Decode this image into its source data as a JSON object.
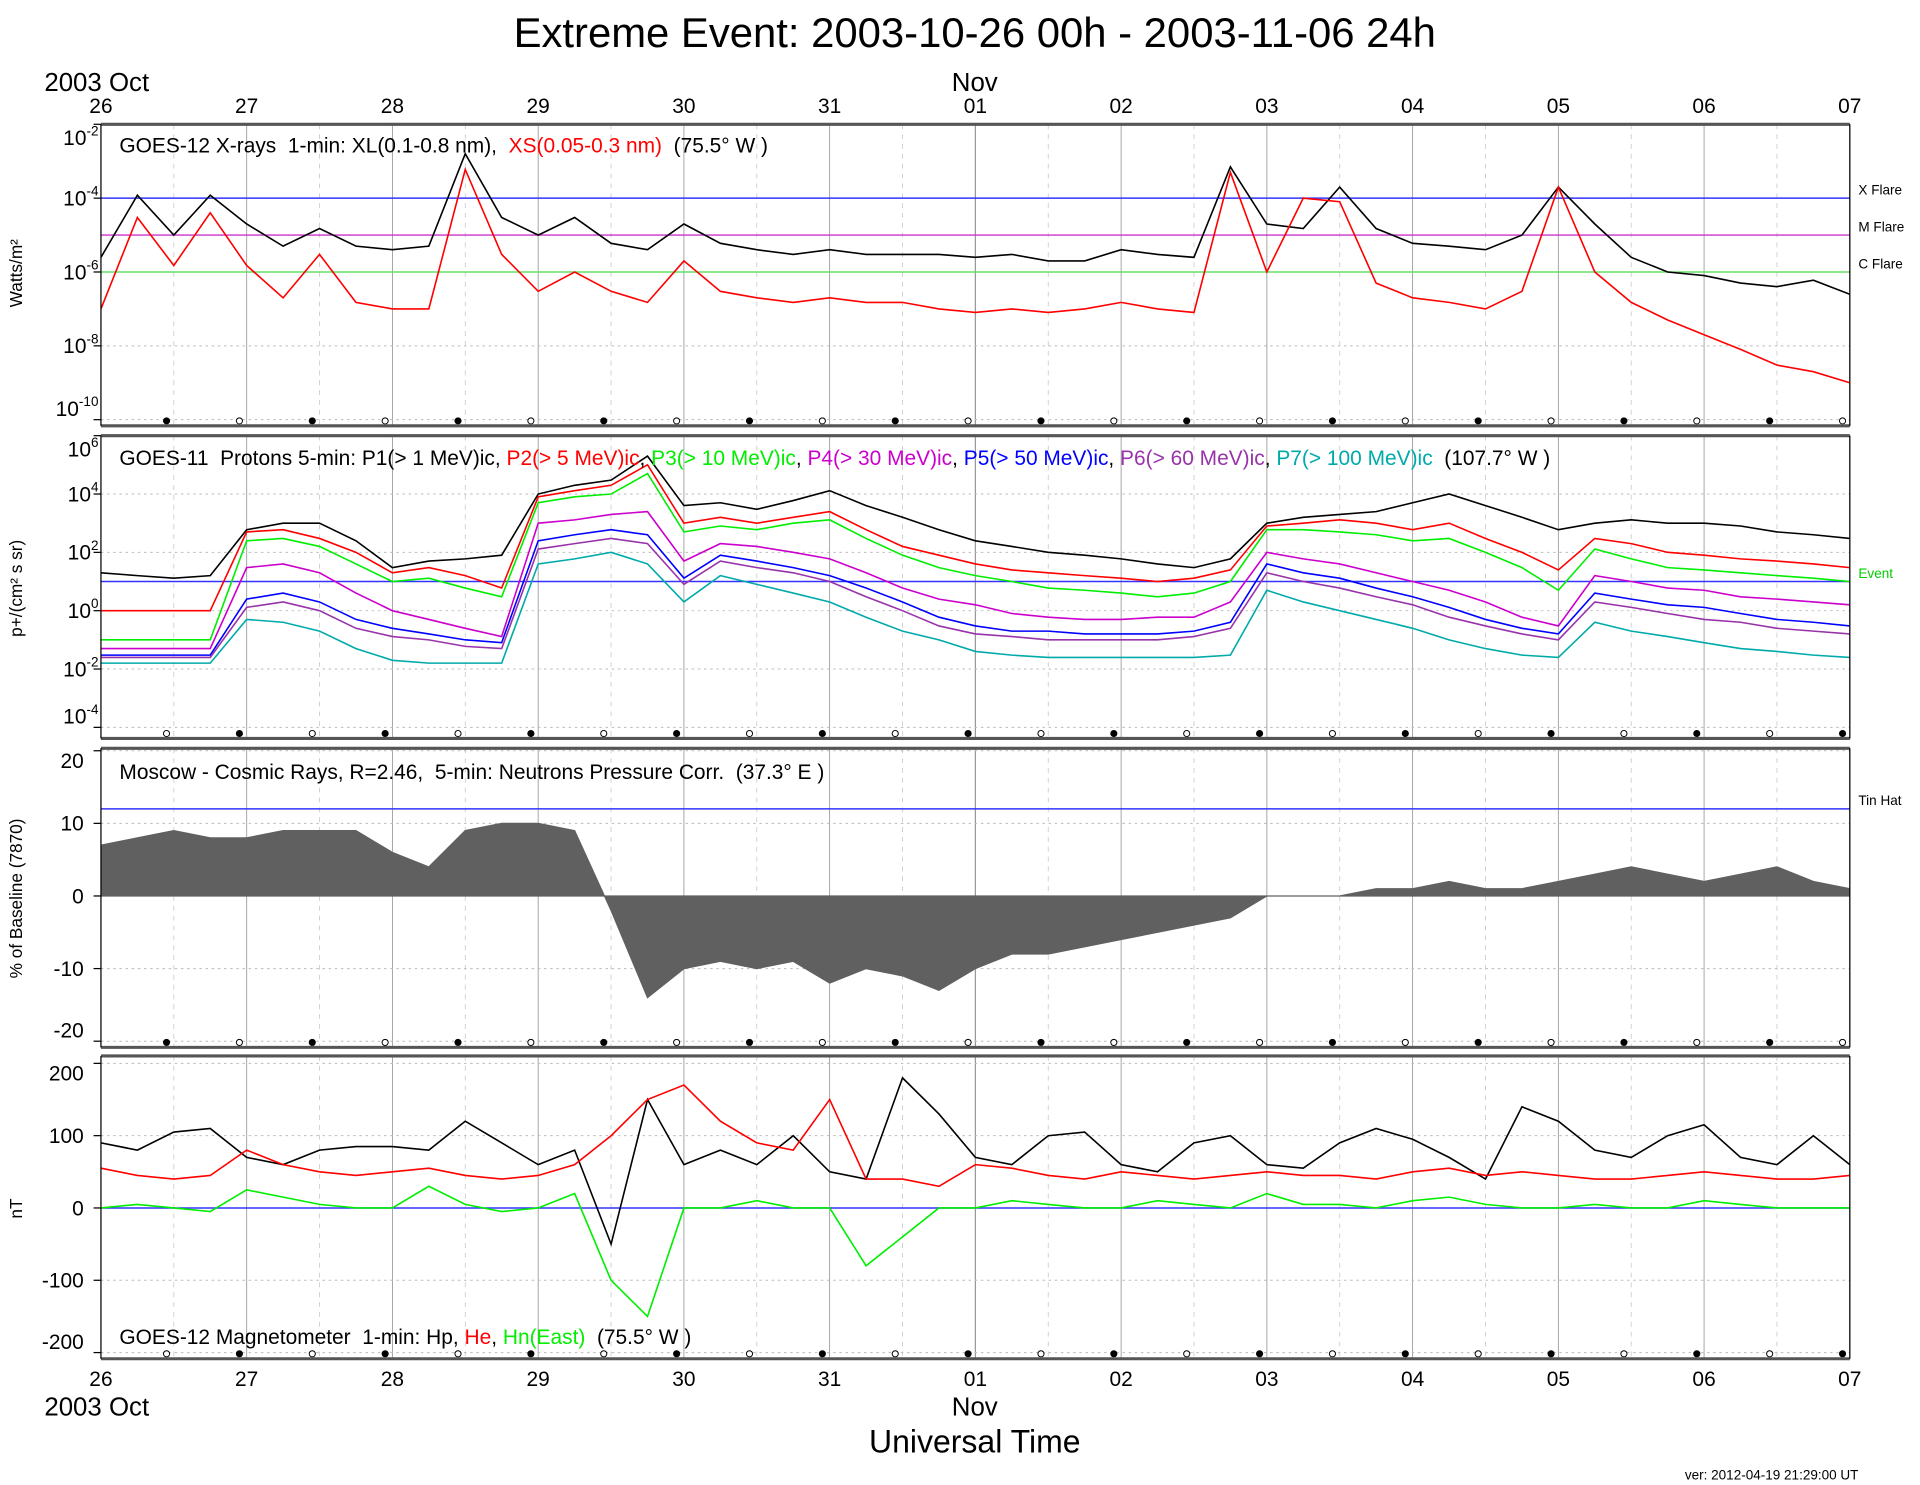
{
  "title": "Extreme Event: 2003-10-26 00h - 2003-11-06 24h",
  "month_left": "2003 Oct",
  "month_mid": "Nov",
  "x_tick_labels": [
    "26",
    "27",
    "28",
    "29",
    "30",
    "31",
    "01",
    "02",
    "03",
    "04",
    "05",
    "06",
    "07"
  ],
  "xlabel": "Universal Time",
  "version": "ver: 2012-04-19 21:29:00 UT",
  "colors": {
    "threshold_blue": "#3333ff",
    "m_flare": "#cc33cc",
    "c_flare": "#66dd66",
    "grid": "#999999",
    "cosmic_fill": "#606060"
  },
  "chart_data": [
    {
      "type": "line",
      "id": "xray",
      "title_parts": [
        {
          "text": "GOES-12 X-rays  1-min: XL(0.1-0.8 nm),  ",
          "color": "#000000"
        },
        {
          "text": "XS(0.05-0.3 nm)",
          "color": "#ff0000"
        },
        {
          "text": "  (75.5° W )",
          "color": "#000000"
        }
      ],
      "ylabel": "Watts/m²",
      "yscale": "log",
      "ylim": [
        1e-10,
        0.01
      ],
      "y_ticks": [
        {
          "base": "10",
          "exp": "-2"
        },
        {
          "base": "10",
          "exp": "-4"
        },
        {
          "base": "10",
          "exp": "-6"
        },
        {
          "base": "10",
          "exp": "-8"
        },
        {
          "base": "10",
          "exp": "-10"
        }
      ],
      "thresholds": [
        {
          "label": "X Flare",
          "value": 0.0001,
          "color": "#3333ff"
        },
        {
          "label": "M Flare",
          "value": 1e-05,
          "color": "#cc33cc"
        },
        {
          "label": "C Flare",
          "value": 1e-06,
          "color": "#66dd66"
        }
      ],
      "series": [
        {
          "name": "XL(0.1-0.8 nm)",
          "color": "#000000",
          "values": [
            2.5e-06,
            0.00012,
            1e-05,
            0.00012,
            2e-05,
            5e-06,
            1.5e-05,
            5e-06,
            4e-06,
            5e-06,
            0.0016,
            3e-05,
            1e-05,
            3e-05,
            6e-06,
            4e-06,
            2e-05,
            6e-06,
            4e-06,
            3e-06,
            4e-06,
            3e-06,
            3e-06,
            3e-06,
            2.5e-06,
            3e-06,
            2e-06,
            2e-06,
            4e-06,
            3e-06,
            2.5e-06,
            0.0007,
            2e-05,
            1.5e-05,
            0.0002,
            1.5e-05,
            6e-06,
            5e-06,
            4e-06,
            1e-05,
            0.0002,
            2e-05,
            2.5e-06,
            1e-06,
            8e-07,
            5e-07,
            4e-07,
            6e-07,
            2.5e-07
          ]
        },
        {
          "name": "XS(0.05-0.3 nm)",
          "color": "#ff0000",
          "values": [
            1e-07,
            3e-05,
            1.5e-06,
            4e-05,
            1.5e-06,
            2e-07,
            3e-06,
            1.5e-07,
            1e-07,
            1e-07,
            0.0006,
            3e-06,
            3e-07,
            1e-06,
            3e-07,
            1.5e-07,
            2e-06,
            3e-07,
            2e-07,
            1.5e-07,
            2e-07,
            1.5e-07,
            1.5e-07,
            1e-07,
            8e-08,
            1e-07,
            8e-08,
            1e-07,
            1.5e-07,
            1e-07,
            8e-08,
            0.0005,
            1e-06,
            0.0001,
            8e-05,
            5e-07,
            2e-07,
            1.5e-07,
            1e-07,
            3e-07,
            0.0002,
            1e-06,
            1.5e-07,
            5e-08,
            2e-08,
            8e-09,
            3e-09,
            2e-09,
            1e-09
          ]
        }
      ]
    },
    {
      "type": "line",
      "id": "protons",
      "title_parts": [
        {
          "text": "GOES-11  Protons 5-min: P1(> 1 MeV)ic, ",
          "color": "#000000"
        },
        {
          "text": "P2(> 5 MeV)ic",
          "color": "#ff0000"
        },
        {
          "text": ", ",
          "color": "#000000"
        },
        {
          "text": "P3(> 10 MeV)ic",
          "color": "#00ee00"
        },
        {
          "text": ", ",
          "color": "#000000"
        },
        {
          "text": "P4(> 30 MeV)ic",
          "color": "#cc00cc"
        },
        {
          "text": ", ",
          "color": "#000000"
        },
        {
          "text": "P5(> 50 MeV)ic",
          "color": "#0000ff"
        },
        {
          "text": ", ",
          "color": "#000000"
        },
        {
          "text": "P6(> 60 MeV)ic",
          "color": "#9933aa"
        },
        {
          "text": ", ",
          "color": "#000000"
        },
        {
          "text": "P7(> 100 MeV)ic",
          "color": "#00aaaa"
        },
        {
          "text": "  (107.7° W )",
          "color": "#000000"
        }
      ],
      "ylabel": "p+/(cm² s sr)",
      "yscale": "log",
      "ylim": [
        0.0001,
        1000000.0
      ],
      "y_ticks": [
        {
          "base": "10",
          "exp": "6"
        },
        {
          "base": "10",
          "exp": "4"
        },
        {
          "base": "10",
          "exp": "2"
        },
        {
          "base": "10",
          "exp": "0"
        },
        {
          "base": "10",
          "exp": "-2"
        },
        {
          "base": "10",
          "exp": "-4"
        }
      ],
      "thresholds": [
        {
          "label": "Event",
          "value": 10,
          "color": "#3333ff",
          "label_color": "#00cc00"
        }
      ],
      "series": [
        {
          "name": "P1(> 1 MeV)ic",
          "color": "#000000",
          "values": [
            20,
            16,
            13,
            16,
            600,
            1000,
            1000,
            250,
            30,
            50,
            60,
            80,
            10000,
            20000,
            30000,
            200000,
            4000,
            5000,
            3000,
            6000,
            13000,
            4000,
            1600,
            600,
            250,
            160,
            100,
            80,
            60,
            40,
            30,
            60,
            1000,
            1600,
            2000,
            2500,
            5000,
            10000,
            4000,
            1600,
            600,
            1000,
            1300,
            1000,
            1000,
            800,
            500,
            400,
            300
          ]
        },
        {
          "name": "P2(> 5 MeV)ic",
          "color": "#ff0000",
          "values": [
            1,
            1,
            1,
            1,
            500,
            600,
            300,
            100,
            20,
            30,
            16,
            6,
            8000,
            13000,
            20000,
            100000,
            1000,
            1600,
            1000,
            1600,
            2500,
            600,
            160,
            80,
            40,
            25,
            20,
            16,
            13,
            10,
            13,
            25,
            800,
            1000,
            1300,
            1000,
            600,
            1000,
            300,
            100,
            25,
            300,
            200,
            100,
            80,
            60,
            50,
            40,
            30
          ]
        },
        {
          "name": "P3(> 10 MeV)ic",
          "color": "#00ee00",
          "values": [
            0.1,
            0.1,
            0.1,
            0.1,
            250,
            300,
            160,
            40,
            10,
            13,
            6,
            3,
            5000,
            8000,
            10000,
            50000,
            500,
            800,
            600,
            1000,
            1300,
            300,
            80,
            30,
            16,
            10,
            6,
            5,
            4,
            3,
            4,
            10,
            600,
            600,
            500,
            400,
            250,
            300,
            100,
            30,
            5,
            130,
            60,
            30,
            25,
            20,
            16,
            13,
            10
          ]
        },
        {
          "name": "P4(> 30 MeV)ic",
          "color": "#cc00cc",
          "values": [
            0.05,
            0.05,
            0.05,
            0.05,
            30,
            40,
            20,
            4,
            1,
            0.5,
            0.25,
            0.13,
            1000,
            1300,
            2000,
            2500,
            50,
            200,
            160,
            100,
            60,
            20,
            6,
            2.5,
            1.6,
            0.8,
            0.6,
            0.5,
            0.5,
            0.6,
            0.6,
            2,
            100,
            60,
            40,
            20,
            10,
            5,
            2,
            0.6,
            0.3,
            16,
            10,
            6,
            5,
            3,
            2.5,
            2,
            1.6
          ]
        },
        {
          "name": "P5(> 50 MeV)ic",
          "color": "#0000ff",
          "values": [
            0.03,
            0.03,
            0.03,
            0.03,
            2.5,
            4,
            2,
            0.5,
            0.25,
            0.16,
            0.1,
            0.08,
            250,
            400,
            600,
            400,
            13,
            80,
            50,
            30,
            16,
            6,
            2,
            0.6,
            0.3,
            0.2,
            0.2,
            0.16,
            0.16,
            0.16,
            0.2,
            0.4,
            40,
            20,
            13,
            6,
            3,
            1.3,
            0.5,
            0.25,
            0.16,
            4,
            2.5,
            1.6,
            1.3,
            0.8,
            0.5,
            0.4,
            0.3
          ]
        },
        {
          "name": "P6(> 60 MeV)ic",
          "color": "#9933aa",
          "values": [
            0.025,
            0.025,
            0.025,
            0.025,
            1.3,
            2,
            1,
            0.25,
            0.13,
            0.1,
            0.06,
            0.05,
            130,
            200,
            300,
            200,
            8,
            50,
            30,
            20,
            10,
            3,
            1,
            0.3,
            0.16,
            0.13,
            0.1,
            0.1,
            0.1,
            0.1,
            0.13,
            0.25,
            20,
            10,
            6,
            3,
            1.6,
            0.6,
            0.3,
            0.16,
            0.1,
            2,
            1.3,
            0.8,
            0.5,
            0.4,
            0.25,
            0.2,
            0.16
          ]
        },
        {
          "name": "P7(> 100 MeV)ic",
          "color": "#00aaaa",
          "values": [
            0.016,
            0.016,
            0.016,
            0.016,
            0.5,
            0.4,
            0.2,
            0.05,
            0.02,
            0.016,
            0.016,
            0.016,
            40,
            60,
            100,
            40,
            2,
            16,
            8,
            4,
            2,
            0.6,
            0.2,
            0.1,
            0.04,
            0.03,
            0.025,
            0.025,
            0.025,
            0.025,
            0.025,
            0.03,
            5,
            2,
            1,
            0.5,
            0.25,
            0.1,
            0.05,
            0.03,
            0.025,
            0.4,
            0.2,
            0.13,
            0.08,
            0.05,
            0.04,
            0.03,
            0.025
          ]
        }
      ]
    },
    {
      "type": "area",
      "id": "cosmic",
      "title_parts": [
        {
          "text": "Moscow - Cosmic Rays, R=2.46,  5-min: Neutrons Pressure Corr.  (37.3° E )",
          "color": "#000000"
        }
      ],
      "ylabel": "% of Baseline (7870)",
      "yscale": "linear",
      "ylim": [
        -20,
        20
      ],
      "y_ticks": [
        {
          "base": "20"
        },
        {
          "base": "10"
        },
        {
          "base": "0"
        },
        {
          "base": "-10"
        },
        {
          "base": "-20"
        }
      ],
      "y_tick_values": [
        20,
        10,
        0,
        -10,
        -20
      ],
      "thresholds": [
        {
          "label": "Tin Hat",
          "value": 12,
          "color": "#3333ff"
        }
      ],
      "series": [
        {
          "name": "Neutrons",
          "color": "#606060",
          "values": [
            7,
            8,
            9,
            8,
            8,
            9,
            9,
            9,
            6,
            4,
            9,
            10,
            10,
            9,
            -2,
            -14,
            -10,
            -9,
            -10,
            -9,
            -12,
            -10,
            -11,
            -13,
            -10,
            -8,
            -8,
            -7,
            -6,
            -5,
            -4,
            -3,
            0,
            0,
            0,
            1,
            1,
            2,
            1,
            1,
            2,
            3,
            4,
            3,
            2,
            3,
            4,
            2,
            1
          ]
        }
      ]
    },
    {
      "type": "line",
      "id": "magnetometer",
      "title_parts": [
        {
          "text": "GOES-12 Magnetometer  1-min: Hp, ",
          "color": "#000000"
        },
        {
          "text": "He",
          "color": "#ff0000"
        },
        {
          "text": ", ",
          "color": "#000000"
        },
        {
          "text": "Hn(East)",
          "color": "#00ee00"
        },
        {
          "text": "  (75.5° W )",
          "color": "#000000"
        }
      ],
      "ylabel": "nT",
      "yscale": "linear",
      "ylim": [
        -200,
        200
      ],
      "y_ticks": [
        {
          "base": "200"
        },
        {
          "base": "100"
        },
        {
          "base": "0"
        },
        {
          "base": "-100"
        },
        {
          "base": "-200"
        }
      ],
      "y_tick_values": [
        200,
        100,
        0,
        -100,
        -200
      ],
      "thresholds": [
        {
          "label": "",
          "value": 0,
          "color": "#3333ff"
        }
      ],
      "series": [
        {
          "name": "Hp",
          "color": "#000000",
          "values": [
            90,
            80,
            105,
            110,
            70,
            60,
            80,
            85,
            85,
            80,
            120,
            90,
            60,
            80,
            -50,
            150,
            60,
            80,
            60,
            100,
            50,
            40,
            180,
            130,
            70,
            60,
            100,
            105,
            60,
            50,
            90,
            100,
            60,
            55,
            90,
            110,
            95,
            70,
            40,
            140,
            120,
            80,
            70,
            100,
            115,
            70,
            60,
            100,
            60
          ]
        },
        {
          "name": "He",
          "color": "#ff0000",
          "values": [
            55,
            45,
            40,
            45,
            80,
            60,
            50,
            45,
            50,
            55,
            45,
            40,
            45,
            60,
            100,
            150,
            170,
            120,
            90,
            80,
            150,
            40,
            40,
            30,
            60,
            55,
            45,
            40,
            50,
            45,
            40,
            45,
            50,
            45,
            45,
            40,
            50,
            55,
            45,
            50,
            45,
            40,
            40,
            45,
            50,
            45,
            40,
            40,
            45
          ]
        },
        {
          "name": "Hn(East)",
          "color": "#00ee00",
          "values": [
            0,
            5,
            0,
            -5,
            25,
            15,
            5,
            0,
            0,
            30,
            5,
            -5,
            0,
            20,
            -100,
            -150,
            0,
            0,
            10,
            0,
            0,
            -80,
            -40,
            0,
            0,
            10,
            5,
            0,
            0,
            10,
            5,
            0,
            20,
            5,
            5,
            0,
            10,
            15,
            5,
            0,
            0,
            5,
            0,
            0,
            10,
            5,
            0,
            0,
            0
          ]
        }
      ]
    }
  ],
  "x": [
    "2003-10-26T00:00",
    "2003-10-26T06:00",
    "2003-10-26T12:00",
    "2003-10-26T18:00",
    "2003-10-27T00:00",
    "2003-10-27T06:00",
    "2003-10-27T12:00",
    "2003-10-27T18:00",
    "2003-10-28T00:00",
    "2003-10-28T06:00",
    "2003-10-28T12:00",
    "2003-10-28T18:00",
    "2003-10-29T00:00",
    "2003-10-29T06:00",
    "2003-10-29T12:00",
    "2003-10-29T18:00",
    "2003-10-30T00:00",
    "2003-10-30T06:00",
    "2003-10-30T12:00",
    "2003-10-30T18:00",
    "2003-10-31T00:00",
    "2003-10-31T06:00",
    "2003-10-31T12:00",
    "2003-10-31T18:00",
    "2003-11-01T00:00",
    "2003-11-01T06:00",
    "2003-11-01T12:00",
    "2003-11-01T18:00",
    "2003-11-02T00:00",
    "2003-11-02T06:00",
    "2003-11-02T12:00",
    "2003-11-02T18:00",
    "2003-11-03T00:00",
    "2003-11-03T06:00",
    "2003-11-03T12:00",
    "2003-11-03T18:00",
    "2003-11-04T00:00",
    "2003-11-04T06:00",
    "2003-11-04T12:00",
    "2003-11-04T18:00",
    "2003-11-05T00:00",
    "2003-11-05T06:00",
    "2003-11-05T12:00",
    "2003-11-05T18:00",
    "2003-11-06T00:00",
    "2003-11-06T06:00",
    "2003-11-06T12:00",
    "2003-11-06T18:00",
    "2003-11-07T00:00"
  ],
  "xlim": [
    "2003-10-26T00:00",
    "2003-11-07T00:00"
  ]
}
